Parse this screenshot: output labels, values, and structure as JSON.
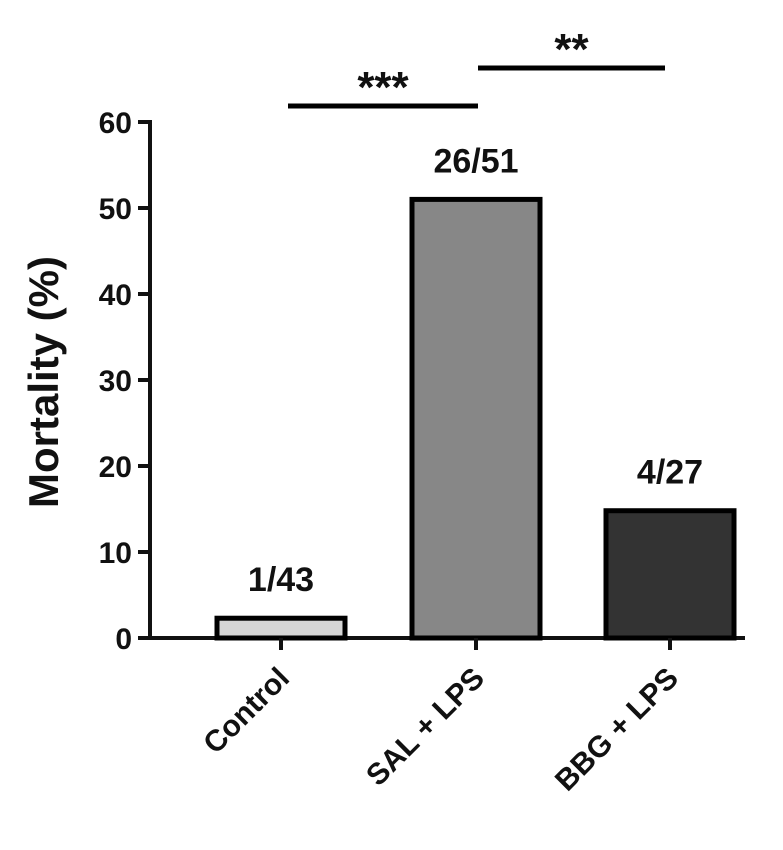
{
  "chart_data": {
    "type": "bar",
    "categories": [
      "Control",
      "SAL + LPS",
      "BBG + LPS"
    ],
    "values": [
      2.3,
      51.0,
      14.8
    ],
    "data_labels": [
      "1/43",
      "26/51",
      "4/27"
    ],
    "colors": [
      "#d6d6d6",
      "#878787",
      "#333333"
    ],
    "xlabel": "",
    "ylabel": "Mortality (%)",
    "ylim": [
      0,
      60
    ],
    "yticks": [
      0,
      10,
      20,
      30,
      40,
      50,
      60
    ],
    "grid": false,
    "legend": "none",
    "significance": [
      {
        "from": 0,
        "to": 1,
        "label": "***"
      },
      {
        "from": 1,
        "to": 2,
        "label": "**"
      }
    ]
  }
}
